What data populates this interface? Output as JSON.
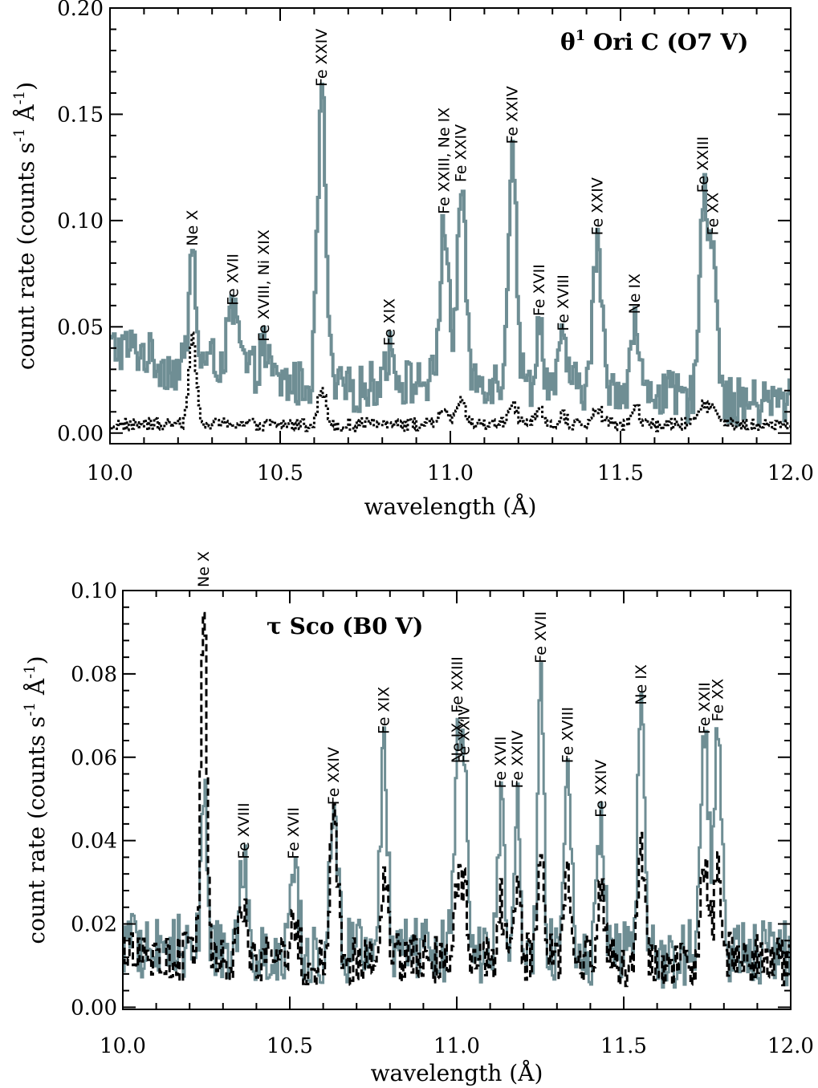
{
  "chart_data": [
    {
      "type": "line",
      "title": "θ¹ Ori C (O7 V)",
      "title_parts": {
        "symbol": "θ",
        "sup": "1",
        "rest": " Ori C (O7 V)"
      },
      "xlabel": "wavelength (Å)",
      "ylabel": "count rate (counts s⁻¹ Å⁻¹)",
      "ylabel_parts": {
        "pre": "count rate (counts s",
        "sup1": "-1",
        "mid": " Å",
        "sup2": "-1",
        "post": ")"
      },
      "xlim": [
        10.0,
        12.0
      ],
      "ylim": [
        -0.005,
        0.2
      ],
      "x_ticks": [
        10.0,
        10.5,
        11.0,
        11.5,
        12.0
      ],
      "x_tick_labels": [
        "10.0",
        "10.5",
        "11.0",
        "11.5",
        "12.0"
      ],
      "y_ticks": [
        0.0,
        0.05,
        0.1,
        0.15,
        0.2
      ],
      "y_tick_labels": [
        "0.00",
        "0.05",
        "0.10",
        "0.15",
        "0.20"
      ],
      "colors": {
        "observed": "#6f8e94",
        "model": "#000000"
      },
      "continuum": [
        [
          10.0,
          0.04
        ],
        [
          10.05,
          0.04
        ],
        [
          10.1,
          0.038
        ],
        [
          10.15,
          0.032
        ],
        [
          10.2,
          0.03
        ],
        [
          10.3,
          0.034
        ],
        [
          10.4,
          0.03
        ],
        [
          10.5,
          0.024
        ],
        [
          10.6,
          0.022
        ],
        [
          10.7,
          0.02
        ],
        [
          10.8,
          0.024
        ],
        [
          10.9,
          0.024
        ],
        [
          11.0,
          0.026
        ],
        [
          11.1,
          0.025
        ],
        [
          11.2,
          0.023
        ],
        [
          11.3,
          0.022
        ],
        [
          11.4,
          0.022
        ],
        [
          11.5,
          0.022
        ],
        [
          11.6,
          0.02
        ],
        [
          11.7,
          0.015
        ],
        [
          11.8,
          0.015
        ],
        [
          11.9,
          0.014
        ],
        [
          12.0,
          0.015
        ]
      ],
      "lines": [
        {
          "label": "Ne X",
          "wavelength": 10.24,
          "peak": 0.085,
          "model_peak": 0.05,
          "width": 0.01
        },
        {
          "label": "Fe XVII",
          "wavelength": 10.36,
          "peak": 0.057,
          "model_peak": 0.005,
          "width": 0.015
        },
        {
          "label": "Fe XVIII, Ni XIX",
          "wavelength": 10.45,
          "peak": 0.04,
          "model_peak": 0.004,
          "width": 0.012
        },
        {
          "label": "Fe XXIV",
          "wavelength": 10.62,
          "peak": 0.16,
          "model_peak": 0.02,
          "width": 0.012
        },
        {
          "label": "Fe XIX",
          "wavelength": 10.82,
          "peak": 0.038,
          "model_peak": 0.006,
          "width": 0.015
        },
        {
          "label": "Fe XXIII, Ne IX",
          "wavelength": 10.98,
          "peak": 0.1,
          "model_peak": 0.012,
          "width": 0.012
        },
        {
          "label": "Fe XXIV",
          "wavelength": 11.03,
          "peak": 0.115,
          "model_peak": 0.014,
          "width": 0.012
        },
        {
          "label": "Fe XXIV",
          "wavelength": 11.18,
          "peak": 0.133,
          "model_peak": 0.015,
          "width": 0.012
        },
        {
          "label": "Fe XVII",
          "wavelength": 11.26,
          "peak": 0.052,
          "model_peak": 0.01,
          "width": 0.01
        },
        {
          "label": "Fe XVIII",
          "wavelength": 11.33,
          "peak": 0.045,
          "model_peak": 0.008,
          "width": 0.01
        },
        {
          "label": "Fe XXIV",
          "wavelength": 11.43,
          "peak": 0.09,
          "model_peak": 0.012,
          "width": 0.012
        },
        {
          "label": "Ne IX",
          "wavelength": 11.54,
          "peak": 0.053,
          "model_peak": 0.015,
          "width": 0.01
        },
        {
          "label": "Fe XXIII",
          "wavelength": 11.74,
          "peak": 0.11,
          "model_peak": 0.015,
          "width": 0.012
        },
        {
          "label": "Fe XX",
          "wavelength": 11.77,
          "peak": 0.09,
          "model_peak": 0.012,
          "width": 0.012
        }
      ]
    },
    {
      "type": "line",
      "title": "τ Sco (B0 V)",
      "title_parts": {
        "symbol": "τ",
        "sup": "",
        "rest": " Sco (B0 V)"
      },
      "xlabel": "wavelength (Å)",
      "ylabel": "count rate (counts s⁻¹ Å⁻¹)",
      "ylabel_parts": {
        "pre": "count rate (counts s",
        "sup1": "-1",
        "mid": " Å",
        "sup2": "-1",
        "post": ")"
      },
      "xlim": [
        10.0,
        12.0
      ],
      "ylim": [
        -0.0005,
        0.1
      ],
      "x_ticks": [
        10.0,
        10.5,
        11.0,
        11.5,
        12.0
      ],
      "x_tick_labels": [
        "10.0",
        "10.5",
        "11.0",
        "11.5",
        "12.0"
      ],
      "y_ticks": [
        0.0,
        0.02,
        0.04,
        0.06,
        0.08,
        0.1
      ],
      "y_tick_labels": [
        "0.00",
        "0.02",
        "0.04",
        "0.06",
        "0.08",
        "0.10"
      ],
      "colors": {
        "observed": "#6f8e94",
        "model": "#000000"
      },
      "continuum": [
        [
          10.0,
          0.015
        ],
        [
          10.2,
          0.014
        ],
        [
          10.4,
          0.013
        ],
        [
          10.6,
          0.013
        ],
        [
          10.8,
          0.014
        ],
        [
          11.0,
          0.014
        ],
        [
          11.2,
          0.014
        ],
        [
          11.4,
          0.013
        ],
        [
          11.6,
          0.012
        ],
        [
          11.8,
          0.014
        ],
        [
          12.0,
          0.013
        ]
      ],
      "lines": [
        {
          "label": "Ne X",
          "wavelength": 10.24,
          "peak": 0.055,
          "model_peak": 0.1,
          "width": 0.008
        },
        {
          "label": "Fe XVIII",
          "wavelength": 10.36,
          "peak": 0.034,
          "model_peak": 0.024,
          "width": 0.012
        },
        {
          "label": "Fe XVII",
          "wavelength": 10.51,
          "peak": 0.034,
          "model_peak": 0.022,
          "width": 0.012
        },
        {
          "label": "Fe XXIV",
          "wavelength": 10.63,
          "peak": 0.047,
          "model_peak": 0.043,
          "width": 0.012
        },
        {
          "label": "Fe XIX",
          "wavelength": 10.78,
          "peak": 0.064,
          "model_peak": 0.033,
          "width": 0.01
        },
        {
          "label": "Ne IX, Fe XXIII",
          "wavelength": 11.0,
          "peak": 0.057,
          "model_peak": 0.028,
          "width": 0.01
        },
        {
          "label": "Fe XXIV",
          "wavelength": 11.02,
          "peak": 0.057,
          "model_peak": 0.026,
          "width": 0.01
        },
        {
          "label": "Fe XVII",
          "wavelength": 11.13,
          "peak": 0.051,
          "model_peak": 0.025,
          "width": 0.008
        },
        {
          "label": "Fe XXIV",
          "wavelength": 11.18,
          "peak": 0.051,
          "model_peak": 0.033,
          "width": 0.008
        },
        {
          "label": "Fe XVII",
          "wavelength": 11.25,
          "peak": 0.081,
          "model_peak": 0.035,
          "width": 0.008
        },
        {
          "label": "Fe XVIII",
          "wavelength": 11.33,
          "peak": 0.057,
          "model_peak": 0.032,
          "width": 0.01
        },
        {
          "label": "Fe XXIV",
          "wavelength": 11.43,
          "peak": 0.044,
          "model_peak": 0.03,
          "width": 0.01
        },
        {
          "label": "Ne IX",
          "wavelength": 11.55,
          "peak": 0.071,
          "model_peak": 0.039,
          "width": 0.01
        },
        {
          "label": "Fe XXII",
          "wavelength": 11.74,
          "peak": 0.064,
          "model_peak": 0.035,
          "width": 0.012
        },
        {
          "label": "Fe XX",
          "wavelength": 11.78,
          "peak": 0.067,
          "model_peak": 0.033,
          "width": 0.01
        }
      ]
    }
  ]
}
